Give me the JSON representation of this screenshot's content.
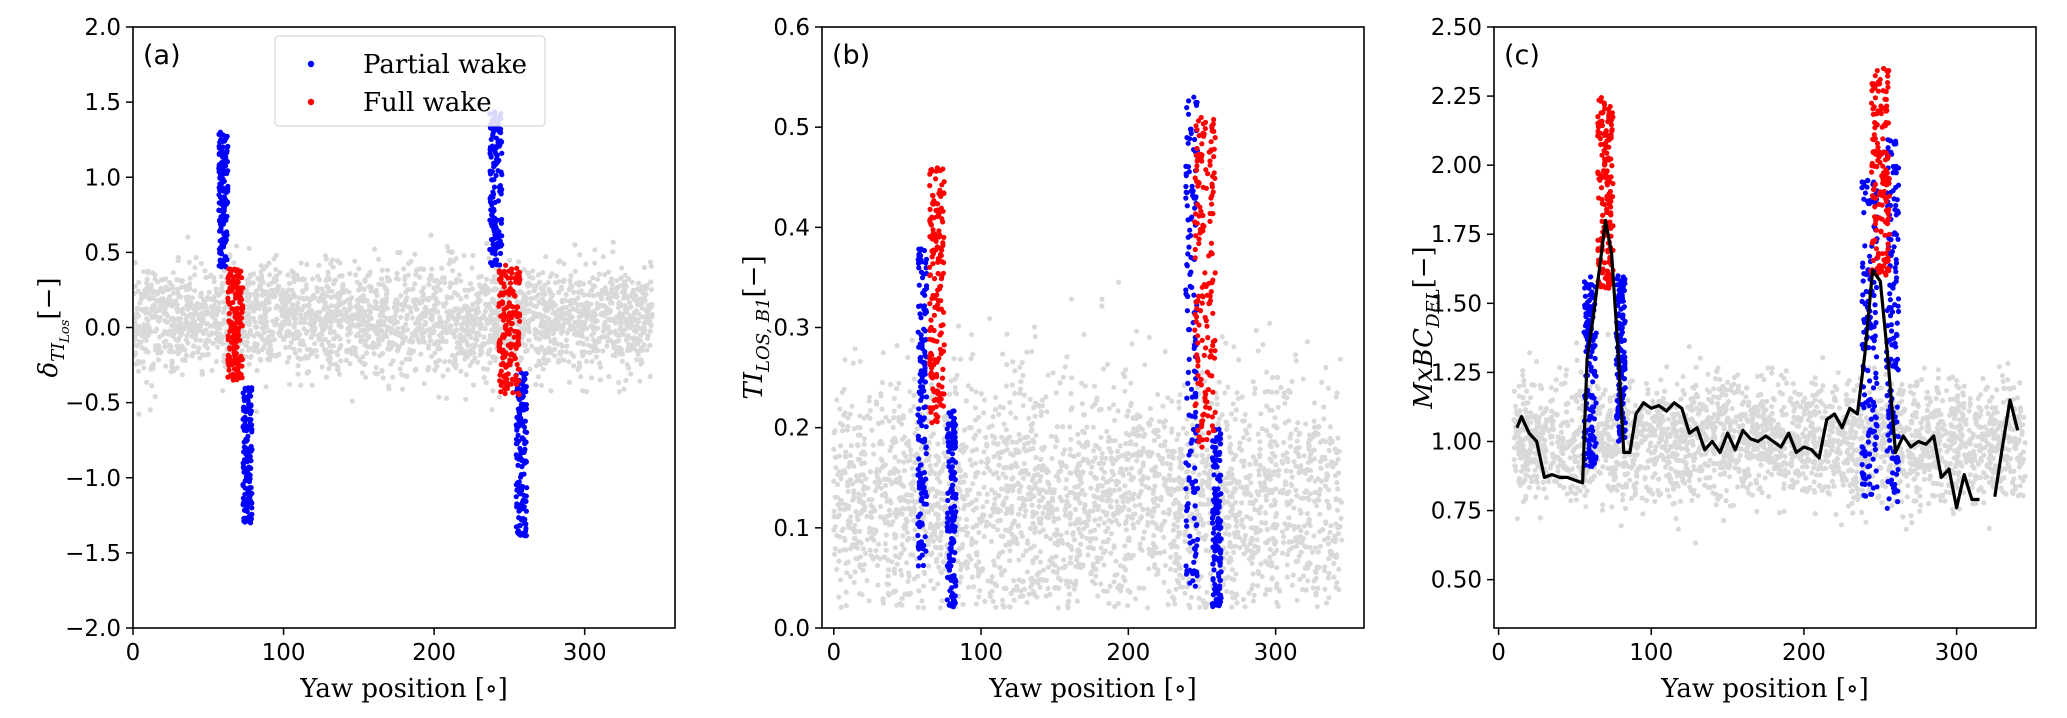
{
  "colors": {
    "background": "#d9d9d9",
    "partial_wake": "#0000ff",
    "full_wake": "#ff0000",
    "mean_line": "#000000"
  },
  "legend": {
    "items": [
      {
        "label": "Partial wake",
        "color": "#0000ff"
      },
      {
        "label": "Full wake",
        "color": "#ff0000"
      }
    ]
  },
  "chart_data": [
    {
      "panel": "(a)",
      "type": "scatter",
      "xlabel": "Yaw position [∘]",
      "ylabel_base": "δ",
      "ylabel_sub": "TI",
      "ylabel_subsub": "Los",
      "ylabel_unit": "[−]",
      "xlim": [
        0,
        360
      ],
      "ylim": [
        -2.0,
        2.0
      ],
      "xticks": [
        0,
        100,
        200,
        300
      ],
      "yticks": [
        -2.0,
        -1.5,
        -1.0,
        -0.5,
        0.0,
        0.5,
        1.0,
        1.5,
        2.0
      ],
      "ytick_labels": [
        "−2.0",
        "−1.5",
        "−1.0",
        "−0.5",
        "0.0",
        "0.5",
        "1.0",
        "1.5",
        "2.0"
      ],
      "background_scatter": {
        "x_range": [
          0,
          345
        ],
        "y_mean": 0.05,
        "y_spread": 0.3
      },
      "partial_wake_clusters": [
        {
          "x_center": 60,
          "x_width": 6,
          "y_min": 0.4,
          "y_max": 1.3
        },
        {
          "x_center": 76,
          "x_width": 6,
          "y_min": -1.3,
          "y_max": -0.4
        },
        {
          "x_center": 241,
          "x_width": 8,
          "y_min": 0.4,
          "y_max": 1.45
        },
        {
          "x_center": 258,
          "x_width": 7,
          "y_min": -1.4,
          "y_max": -0.3
        }
      ],
      "full_wake_clusters": [
        {
          "x_center": 68,
          "x_width": 10,
          "y_min": -0.35,
          "y_max": 0.4
        },
        {
          "x_center": 250,
          "x_width": 14,
          "y_min": -0.45,
          "y_max": 0.45
        }
      ],
      "show_legend": true
    },
    {
      "panel": "(b)",
      "type": "scatter",
      "xlabel": "Yaw position [∘]",
      "ylabel_base": "TI",
      "ylabel_sub": "LOS, B1",
      "ylabel_unit": "[−]",
      "xlim": [
        -8,
        360
      ],
      "ylim": [
        0.0,
        0.6
      ],
      "xticks": [
        0,
        100,
        200,
        300
      ],
      "yticks": [
        0.0,
        0.1,
        0.2,
        0.3,
        0.4,
        0.5,
        0.6
      ],
      "ytick_labels": [
        "0.0",
        "0.1",
        "0.2",
        "0.3",
        "0.4",
        "0.5",
        "0.6"
      ],
      "background_scatter": {
        "x_range": [
          0,
          345
        ],
        "y_mean": 0.11,
        "y_spread": 0.06
      },
      "partial_wake_clusters": [
        {
          "x_center": 60,
          "x_width": 6,
          "y_min": 0.06,
          "y_max": 0.38
        },
        {
          "x_center": 80,
          "x_width": 6,
          "y_min": 0.02,
          "y_max": 0.22
        },
        {
          "x_center": 243,
          "x_width": 8,
          "y_min": 0.04,
          "y_max": 0.53
        },
        {
          "x_center": 260,
          "x_width": 6,
          "y_min": 0.02,
          "y_max": 0.2
        }
      ],
      "full_wake_clusters": [
        {
          "x_center": 70,
          "x_width": 10,
          "y_min": 0.2,
          "y_max": 0.46
        },
        {
          "x_center": 252,
          "x_width": 14,
          "y_min": 0.18,
          "y_max": 0.51
        }
      ],
      "show_legend": false
    },
    {
      "panel": "(c)",
      "type": "scatter",
      "xlabel": "Yaw position [∘]",
      "ylabel_base": "MxBC",
      "ylabel_sub": "DEL",
      "ylabel_unit": "[−]",
      "xlim": [
        -3,
        352
      ],
      "ylim": [
        0.325,
        2.5
      ],
      "xticks": [
        0,
        100,
        200,
        300
      ],
      "yticks": [
        0.5,
        0.75,
        1.0,
        1.25,
        1.5,
        1.75,
        2.0,
        2.25,
        2.5
      ],
      "ytick_labels": [
        "0.50",
        "0.75",
        "1.00",
        "1.25",
        "1.50",
        "1.75",
        "2.00",
        "2.25",
        "2.50"
      ],
      "background_scatter": {
        "x_range": [
          10,
          345
        ],
        "y_mean": 1.0,
        "y_spread": 0.18
      },
      "partial_wake_clusters": [
        {
          "x_center": 60,
          "x_width": 8,
          "y_min": 0.9,
          "y_max": 1.6
        },
        {
          "x_center": 80,
          "x_width": 6,
          "y_min": 1.0,
          "y_max": 1.6
        },
        {
          "x_center": 243,
          "x_width": 10,
          "y_min": 0.8,
          "y_max": 1.95
        },
        {
          "x_center": 258,
          "x_width": 8,
          "y_min": 0.75,
          "y_max": 2.1
        }
      ],
      "full_wake_clusters": [
        {
          "x_center": 70,
          "x_width": 10,
          "y_min": 1.55,
          "y_max": 2.25
        },
        {
          "x_center": 250,
          "x_width": 12,
          "y_min": 1.6,
          "y_max": 2.35
        }
      ],
      "mean_line": {
        "x": [
          12,
          15,
          20,
          25,
          30,
          35,
          40,
          45,
          50,
          55,
          58,
          62,
          66,
          70,
          74,
          78,
          82,
          86,
          90,
          95,
          100,
          105,
          110,
          115,
          120,
          125,
          130,
          135,
          140,
          145,
          150,
          155,
          160,
          165,
          170,
          175,
          180,
          185,
          190,
          195,
          200,
          205,
          210,
          215,
          220,
          225,
          230,
          235,
          240,
          245,
          250,
          255,
          260,
          265,
          270,
          275,
          280,
          285,
          290,
          295,
          300,
          305,
          310,
          315,
          null,
          325,
          330,
          335,
          340
        ],
        "y": [
          1.05,
          1.09,
          1.03,
          1.0,
          0.87,
          0.88,
          0.87,
          0.87,
          0.86,
          0.85,
          1.3,
          1.45,
          1.62,
          1.8,
          1.68,
          1.35,
          0.96,
          0.96,
          1.1,
          1.14,
          1.12,
          1.13,
          1.11,
          1.14,
          1.12,
          1.03,
          1.05,
          0.97,
          1.0,
          0.96,
          1.03,
          0.97,
          1.04,
          1.01,
          1.0,
          1.02,
          1.0,
          0.98,
          1.03,
          0.96,
          0.98,
          0.97,
          0.94,
          1.08,
          1.1,
          1.05,
          1.12,
          1.1,
          1.32,
          1.62,
          1.58,
          1.3,
          0.96,
          1.02,
          0.98,
          1.0,
          0.99,
          1.02,
          0.87,
          0.9,
          0.76,
          0.88,
          0.79,
          0.79,
          null,
          0.8,
          0.98,
          1.15,
          1.04
        ]
      },
      "show_legend": false
    }
  ]
}
